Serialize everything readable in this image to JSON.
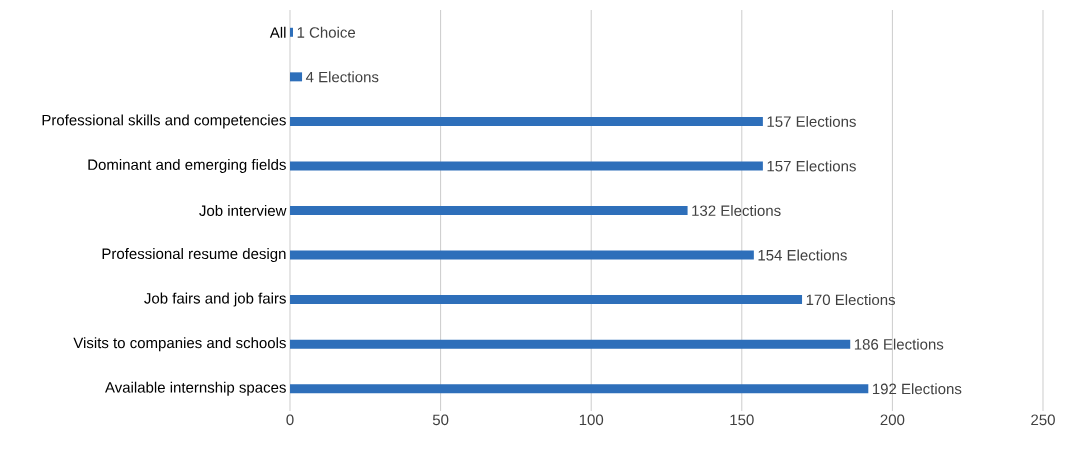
{
  "chart_data": {
    "type": "bar",
    "orientation": "horizontal",
    "categories": [
      "All",
      null,
      "Professional skills and competencies",
      "Dominant and emerging fields",
      "Job interview",
      "Professional resume design",
      "Job fairs and job fairs",
      "Visits to companies and schools",
      "Available internship spaces"
    ],
    "values": [
      1,
      4,
      157,
      157,
      132,
      154,
      170,
      186,
      192
    ],
    "value_labels": [
      "1 Choice",
      "4 Elections",
      "157 Elections",
      "157 Elections",
      "132 Elections",
      "154 Elections",
      "170 Elections",
      "186 Elections",
      "192 Elections"
    ],
    "color": "#2e6fba",
    "xlim": [
      0,
      250
    ],
    "xticks": [
      0,
      50,
      100,
      150,
      200,
      250
    ],
    "grid": "x"
  }
}
